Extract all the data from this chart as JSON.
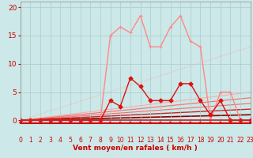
{
  "bg_color": "#cce8e8",
  "grid_color": "#aacccc",
  "xlabel": "Vent moyen/en rafales ( km/h )",
  "xlim": [
    0,
    23
  ],
  "ylim": [
    -0.5,
    21
  ],
  "yticks": [
    0,
    5,
    10,
    15,
    20
  ],
  "xticks": [
    0,
    1,
    2,
    3,
    4,
    5,
    6,
    7,
    8,
    9,
    10,
    11,
    12,
    13,
    14,
    15,
    16,
    17,
    18,
    19,
    20,
    21,
    22,
    23
  ],
  "series_light": {
    "x": [
      0,
      1,
      2,
      3,
      4,
      5,
      6,
      7,
      8,
      9,
      10,
      11,
      12,
      13,
      14,
      15,
      16,
      17,
      18,
      19,
      20,
      21,
      22,
      23
    ],
    "y": [
      0,
      0,
      0,
      0,
      0,
      0,
      0,
      0,
      0,
      15.0,
      16.5,
      15.5,
      18.5,
      13.0,
      13.0,
      16.5,
      18.5,
      14.0,
      13.0,
      0,
      5.0,
      5.0,
      0,
      0
    ],
    "color": "#ff8888",
    "lw": 1.0,
    "ms": 3.5
  },
  "series_dark": {
    "x": [
      0,
      1,
      2,
      3,
      4,
      5,
      6,
      7,
      8,
      9,
      10,
      11,
      12,
      13,
      14,
      15,
      16,
      17,
      18,
      19,
      20,
      21,
      22,
      23
    ],
    "y": [
      0,
      0,
      0,
      0,
      0,
      0,
      0,
      0,
      0,
      3.5,
      2.5,
      7.5,
      6.0,
      3.5,
      3.5,
      3.5,
      6.5,
      6.5,
      3.5,
      1.0,
      3.5,
      0,
      0,
      0
    ],
    "color": "#dd1111",
    "lw": 1.0,
    "ms": 3.5
  },
  "lines": [
    {
      "x": [
        0,
        23
      ],
      "y": [
        0,
        13.0
      ],
      "color": "#ffaaaa",
      "lw": 0.8,
      "ls": "dotted"
    },
    {
      "x": [
        0,
        23
      ],
      "y": [
        0,
        5.0
      ],
      "color": "#ffaaaa",
      "lw": 0.8,
      "ls": "solid"
    },
    {
      "x": [
        0,
        23
      ],
      "y": [
        0,
        4.0
      ],
      "color": "#ff6666",
      "lw": 0.8,
      "ls": "solid"
    },
    {
      "x": [
        0,
        23
      ],
      "y": [
        0,
        3.0
      ],
      "color": "#ff6666",
      "lw": 0.8,
      "ls": "solid"
    },
    {
      "x": [
        0,
        23
      ],
      "y": [
        0,
        2.0
      ],
      "color": "#cc2222",
      "lw": 1.0,
      "ls": "solid"
    },
    {
      "x": [
        0,
        23
      ],
      "y": [
        0,
        1.0
      ],
      "color": "#880000",
      "lw": 1.2,
      "ls": "solid"
    }
  ],
  "arrow_color": "#cc2222",
  "hline_color": "#cc2222"
}
